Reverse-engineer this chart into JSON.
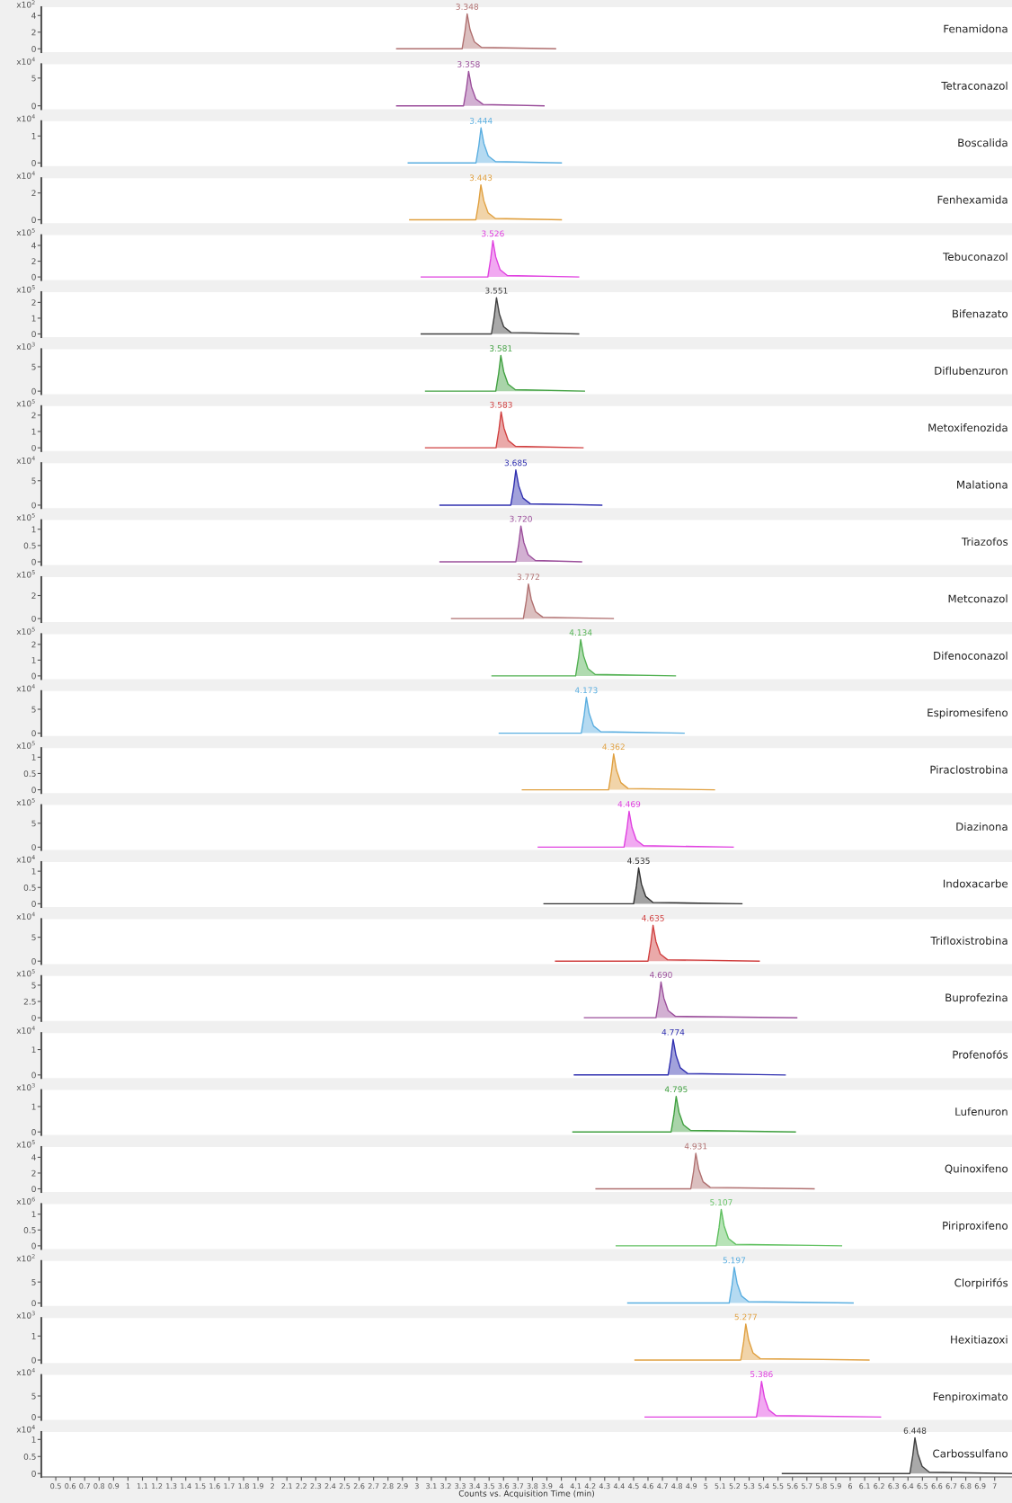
{
  "chart_data": [
    {
      "type": "area",
      "ylabel": "x10$^{2}$",
      "xlim": [
        0.4,
        7.12
      ],
      "ylim": [
        -0.4,
        5
      ],
      "yticks": [
        0,
        2,
        4
      ],
      "tick_labels": "y",
      "x": [
        2.86,
        3.313,
        3.333,
        3.348,
        3.368,
        3.398,
        3.448,
        3.96
      ],
      "series": [
        {
          "color": "#b07070",
          "values": [
            0,
            0,
            2.1,
            4.2,
            2.3,
            0.84,
            0.17,
            0
          ]
        }
      ],
      "annotations": [
        {
          "text": "3.348",
          "x": 3.348,
          "y": 4.2
        },
        "Fenamidona"
      ]
    },
    {
      "type": "area",
      "ylabel": "x10$^{4}$",
      "xlim": [
        0.4,
        7.12
      ],
      "ylim": [
        -0.6,
        7.5
      ],
      "yticks": [
        0,
        5
      ],
      "tick_labels": "y",
      "x": [
        2.86,
        3.323,
        3.343,
        3.358,
        3.378,
        3.408,
        3.458,
        3.88
      ],
      "series": [
        {
          "color": "#9b4f9b",
          "values": [
            0,
            0,
            3.1,
            6.2,
            3.4,
            1.24,
            0.25,
            0
          ]
        }
      ],
      "annotations": [
        {
          "text": "3.358",
          "x": 3.358,
          "y": 6.2
        },
        "Tetraconazol"
      ]
    },
    {
      "type": "area",
      "ylabel": "x10$^{4}$",
      "xlim": [
        0.4,
        7.12
      ],
      "ylim": [
        -0.12,
        1.55
      ],
      "yticks": [
        0,
        1
      ],
      "tick_labels": "y",
      "x": [
        2.94,
        3.409,
        3.429,
        3.444,
        3.464,
        3.494,
        3.544,
        4.0
      ],
      "series": [
        {
          "color": "#5aaee0",
          "values": [
            0,
            0,
            0.65,
            1.3,
            0.72,
            0.26,
            0.05,
            0
          ]
        }
      ],
      "annotations": [
        {
          "text": "3.444",
          "x": 3.444,
          "y": 1.3
        },
        "Boscalida"
      ]
    },
    {
      "type": "area",
      "ylabel": "x10$^{4}$",
      "xlim": [
        0.4,
        7.12
      ],
      "ylim": [
        -0.25,
        3.1
      ],
      "yticks": [
        0,
        2
      ],
      "tick_labels": "y",
      "x": [
        2.95,
        3.408,
        3.428,
        3.443,
        3.463,
        3.493,
        3.543,
        4.0
      ],
      "series": [
        {
          "color": "#e0a040",
          "values": [
            0,
            0,
            1.3,
            2.6,
            1.43,
            0.52,
            0.1,
            0
          ]
        }
      ],
      "annotations": [
        {
          "text": "3.443",
          "x": 3.443,
          "y": 2.6
        },
        "Fenhexamida"
      ]
    },
    {
      "type": "area",
      "ylabel": "x10$^{5}$",
      "xlim": [
        0.4,
        7.12
      ],
      "ylim": [
        -0.4,
        5.3
      ],
      "yticks": [
        0,
        2,
        4
      ],
      "tick_labels": "y",
      "x": [
        3.03,
        3.491,
        3.511,
        3.526,
        3.546,
        3.576,
        3.626,
        4.12
      ],
      "series": [
        {
          "color": "#e040e0",
          "values": [
            0,
            0,
            2.3,
            4.6,
            2.53,
            0.92,
            0.18,
            0
          ]
        }
      ],
      "annotations": [
        {
          "text": "3.526",
          "x": 3.526,
          "y": 4.6
        },
        "Tebuconazol"
      ]
    },
    {
      "type": "area",
      "ylabel": "x10$^{5}$",
      "xlim": [
        0.4,
        7.12
      ],
      "ylim": [
        -0.2,
        2.65
      ],
      "yticks": [
        0,
        1,
        2
      ],
      "tick_labels": "y",
      "x": [
        3.03,
        3.516,
        3.536,
        3.551,
        3.571,
        3.601,
        3.651,
        4.12
      ],
      "series": [
        {
          "color": "#404040",
          "values": [
            0,
            0,
            1.15,
            2.3,
            1.27,
            0.46,
            0.09,
            0
          ]
        }
      ],
      "annotations": [
        {
          "text": "3.551",
          "x": 3.551,
          "y": 2.3
        },
        "Bifenazato"
      ]
    },
    {
      "type": "area",
      "ylabel": "x10$^{3}$",
      "xlim": [
        0.4,
        7.12
      ],
      "ylim": [
        -0.6,
        8.6
      ],
      "yticks": [
        0,
        5
      ],
      "tick_labels": "y",
      "x": [
        3.06,
        3.546,
        3.566,
        3.581,
        3.601,
        3.631,
        3.681,
        4.16
      ],
      "series": [
        {
          "color": "#40a040",
          "values": [
            0,
            0,
            3.65,
            7.3,
            4.0,
            1.46,
            0.29,
            0
          ]
        }
      ],
      "annotations": [
        {
          "text": "3.581",
          "x": 3.581,
          "y": 7.3
        },
        "Diflubenzuron"
      ]
    },
    {
      "type": "area",
      "ylabel": "x10$^{5}$",
      "xlim": [
        0.4,
        7.12
      ],
      "ylim": [
        -0.2,
        2.55
      ],
      "yticks": [
        0,
        1,
        2
      ],
      "tick_labels": "y",
      "x": [
        3.06,
        3.548,
        3.568,
        3.583,
        3.603,
        3.633,
        3.683,
        4.15
      ],
      "series": [
        {
          "color": "#d04040",
          "values": [
            0,
            0,
            1.1,
            2.2,
            1.21,
            0.44,
            0.09,
            0
          ]
        }
      ],
      "annotations": [
        {
          "text": "3.583",
          "x": 3.583,
          "y": 2.2
        },
        "Metoxifenozida"
      ]
    },
    {
      "type": "area",
      "ylabel": "x10$^{4}$",
      "xlim": [
        0.4,
        7.12
      ],
      "ylim": [
        -0.6,
        8.6
      ],
      "yticks": [
        0,
        5
      ],
      "tick_labels": "y",
      "x": [
        3.16,
        3.65,
        3.67,
        3.685,
        3.705,
        3.735,
        3.785,
        4.28
      ],
      "series": [
        {
          "color": "#3030b0",
          "values": [
            0,
            0,
            3.6,
            7.2,
            3.96,
            1.44,
            0.29,
            0
          ]
        }
      ],
      "annotations": [
        {
          "text": "3.685",
          "x": 3.685,
          "y": 7.2
        },
        "Malationa"
      ]
    },
    {
      "type": "area",
      "ylabel": "x10$^{5}$",
      "xlim": [
        0.4,
        7.12
      ],
      "ylim": [
        -0.1,
        1.28
      ],
      "yticks": [
        0,
        0.5,
        1
      ],
      "tick_labels": "y",
      "x": [
        3.16,
        3.685,
        3.705,
        3.72,
        3.74,
        3.77,
        3.82,
        4.14
      ],
      "series": [
        {
          "color": "#9b4f9b",
          "values": [
            0,
            0,
            0.55,
            1.1,
            0.6,
            0.22,
            0.04,
            0
          ]
        }
      ],
      "annotations": [
        {
          "text": "3.720",
          "x": 3.72,
          "y": 1.1
        },
        "Triazofos"
      ]
    },
    {
      "type": "area",
      "ylabel": "x10$^{5}$",
      "xlim": [
        0.4,
        7.12
      ],
      "ylim": [
        -0.3,
        3.6
      ],
      "yticks": [
        0,
        2
      ],
      "tick_labels": "y",
      "x": [
        3.24,
        3.737,
        3.757,
        3.772,
        3.792,
        3.822,
        3.872,
        4.36
      ],
      "series": [
        {
          "color": "#b07070",
          "values": [
            0,
            0,
            1.5,
            3.0,
            1.65,
            0.6,
            0.12,
            0
          ]
        }
      ],
      "annotations": [
        {
          "text": "3.772",
          "x": 3.772,
          "y": 3.0
        },
        "Metconazol"
      ]
    },
    {
      "type": "area",
      "ylabel": "x10$^{5}$",
      "xlim": [
        0.4,
        7.12
      ],
      "ylim": [
        -0.2,
        2.65
      ],
      "yticks": [
        0,
        1,
        2
      ],
      "tick_labels": "y",
      "x": [
        3.52,
        4.099,
        4.119,
        4.134,
        4.154,
        4.184,
        4.234,
        4.79
      ],
      "series": [
        {
          "color": "#50b050",
          "values": [
            0,
            0,
            1.15,
            2.3,
            1.27,
            0.46,
            0.09,
            0
          ]
        }
      ],
      "annotations": [
        {
          "text": "4.134",
          "x": 4.134,
          "y": 2.3
        },
        "Difenoconazol"
      ]
    },
    {
      "type": "area",
      "ylabel": "x10$^{4}$",
      "xlim": [
        0.4,
        7.12
      ],
      "ylim": [
        -0.6,
        8.8
      ],
      "yticks": [
        0,
        5
      ],
      "tick_labels": "y",
      "x": [
        3.57,
        4.138,
        4.158,
        4.173,
        4.193,
        4.223,
        4.273,
        4.85
      ],
      "series": [
        {
          "color": "#5aaee0",
          "values": [
            0,
            0,
            3.75,
            7.5,
            4.1,
            1.5,
            0.3,
            0
          ]
        }
      ],
      "annotations": [
        {
          "text": "4.173",
          "x": 4.173,
          "y": 7.5
        },
        "Espiromesifeno"
      ]
    },
    {
      "type": "area",
      "ylabel": "x10$^{5}$",
      "xlim": [
        0.4,
        7.12
      ],
      "ylim": [
        -0.1,
        1.28
      ],
      "yticks": [
        0,
        0.5,
        1
      ],
      "tick_labels": "y",
      "x": [
        3.73,
        4.327,
        4.347,
        4.362,
        4.382,
        4.412,
        4.462,
        5.06
      ],
      "series": [
        {
          "color": "#e0a040",
          "values": [
            0,
            0,
            0.55,
            1.1,
            0.6,
            0.22,
            0.04,
            0
          ]
        }
      ],
      "annotations": [
        {
          "text": "4.362",
          "x": 4.362,
          "y": 1.1
        },
        "Piraclostrobina"
      ]
    },
    {
      "type": "area",
      "ylabel": "x10$^{5}$",
      "xlim": [
        0.4,
        7.12
      ],
      "ylim": [
        -0.6,
        8.8
      ],
      "yticks": [
        0,
        5
      ],
      "tick_labels": "y",
      "x": [
        3.84,
        4.434,
        4.454,
        4.469,
        4.489,
        4.519,
        4.569,
        5.19
      ],
      "series": [
        {
          "color": "#e040e0",
          "values": [
            0,
            0,
            3.75,
            7.5,
            4.1,
            1.5,
            0.3,
            0
          ]
        }
      ],
      "annotations": [
        {
          "text": "4.469",
          "x": 4.469,
          "y": 7.5
        },
        "Diazinona"
      ]
    },
    {
      "type": "area",
      "ylabel": "x10$^{4}$",
      "xlim": [
        0.4,
        7.12
      ],
      "ylim": [
        -0.1,
        1.28
      ],
      "yticks": [
        0,
        0.5,
        1
      ],
      "tick_labels": "y",
      "x": [
        3.88,
        4.5,
        4.52,
        4.535,
        4.555,
        4.585,
        4.635,
        5.25
      ],
      "series": [
        {
          "color": "#303030",
          "values": [
            0,
            0,
            0.55,
            1.1,
            0.6,
            0.22,
            0.04,
            0
          ]
        }
      ],
      "annotations": [
        {
          "text": "4.535",
          "x": 4.535,
          "y": 1.1
        },
        "Indoxacarbe"
      ]
    },
    {
      "type": "area",
      "ylabel": "x10$^{4}$",
      "xlim": [
        0.4,
        7.12
      ],
      "ylim": [
        -0.6,
        8.8
      ],
      "yticks": [
        0,
        5
      ],
      "tick_labels": "y",
      "x": [
        3.96,
        4.6,
        4.62,
        4.635,
        4.655,
        4.685,
        4.735,
        5.37
      ],
      "series": [
        {
          "color": "#d04040",
          "values": [
            0,
            0,
            3.75,
            7.5,
            4.1,
            1.5,
            0.3,
            0
          ]
        }
      ],
      "annotations": [
        {
          "text": "4.635",
          "x": 4.635,
          "y": 7.5
        },
        "Trifloxistrobina"
      ]
    },
    {
      "type": "area",
      "ylabel": "x10$^{5}$",
      "xlim": [
        0.4,
        7.12
      ],
      "ylim": [
        -0.5,
        6.4
      ],
      "yticks": [
        0,
        2.5,
        5
      ],
      "tick_labels": "y",
      "x": [
        4.16,
        4.655,
        4.675,
        4.69,
        4.71,
        4.74,
        4.79,
        5.63
      ],
      "series": [
        {
          "color": "#9b4f9b",
          "values": [
            0,
            0,
            2.75,
            5.5,
            3.0,
            1.1,
            0.22,
            0
          ]
        }
      ],
      "annotations": [
        {
          "text": "4.690",
          "x": 4.69,
          "y": 5.5
        },
        "Buprofezina"
      ]
    },
    {
      "type": "area",
      "ylabel": "x10$^{4}$",
      "xlim": [
        0.4,
        7.12
      ],
      "ylim": [
        -0.12,
        1.65
      ],
      "yticks": [
        0,
        1
      ],
      "tick_labels": "y",
      "x": [
        4.09,
        4.739,
        4.759,
        4.774,
        4.794,
        4.824,
        4.874,
        5.55
      ],
      "series": [
        {
          "color": "#3030b0",
          "values": [
            0,
            0,
            0.7,
            1.4,
            0.77,
            0.28,
            0.06,
            0
          ]
        }
      ],
      "annotations": [
        {
          "text": "4.774",
          "x": 4.774,
          "y": 1.4
        },
        "Profenofós"
      ]
    },
    {
      "type": "area",
      "ylabel": "x10$^{3}$",
      "xlim": [
        0.4,
        7.12
      ],
      "ylim": [
        -0.12,
        1.65
      ],
      "yticks": [
        0,
        1
      ],
      "tick_labels": "y",
      "x": [
        4.08,
        4.76,
        4.78,
        4.795,
        4.815,
        4.845,
        4.895,
        5.62
      ],
      "series": [
        {
          "color": "#40a040",
          "values": [
            0,
            0,
            0.7,
            1.4,
            0.77,
            0.28,
            0.06,
            0
          ]
        }
      ],
      "annotations": [
        {
          "text": "4.795",
          "x": 4.795,
          "y": 1.4
        },
        "Lufenuron"
      ]
    },
    {
      "type": "area",
      "ylabel": "x10$^{5}$",
      "xlim": [
        0.4,
        7.12
      ],
      "ylim": [
        -0.4,
        5.3
      ],
      "yticks": [
        0,
        2,
        4
      ],
      "tick_labels": "y",
      "x": [
        4.24,
        4.896,
        4.916,
        4.931,
        4.951,
        4.981,
        5.031,
        5.75
      ],
      "series": [
        {
          "color": "#b07070",
          "values": [
            0,
            0,
            2.25,
            4.5,
            2.48,
            0.9,
            0.18,
            0
          ]
        }
      ],
      "annotations": [
        {
          "text": "4.931",
          "x": 4.931,
          "y": 4.5
        },
        "Quinoxifeno"
      ]
    },
    {
      "type": "area",
      "ylabel": "x10$^{6}$",
      "xlim": [
        0.4,
        7.12
      ],
      "ylim": [
        -0.1,
        1.32
      ],
      "yticks": [
        0,
        0.5,
        1
      ],
      "tick_labels": "y",
      "x": [
        4.38,
        5.072,
        5.092,
        5.107,
        5.127,
        5.157,
        5.207,
        5.94
      ],
      "series": [
        {
          "color": "#60c060",
          "values": [
            0,
            0,
            0.58,
            1.15,
            0.63,
            0.23,
            0.05,
            0
          ]
        }
      ],
      "annotations": [
        {
          "text": "5.107",
          "x": 5.107,
          "y": 1.15
        },
        "Piriproxifeno"
      ]
    },
    {
      "type": "area",
      "ylabel": "x10$^{2}$",
      "xlim": [
        0.4,
        7.12
      ],
      "ylim": [
        -0.7,
        10
      ],
      "yticks": [
        0,
        5
      ],
      "tick_labels": "y",
      "x": [
        4.46,
        5.162,
        5.182,
        5.197,
        5.217,
        5.247,
        5.297,
        6.02
      ],
      "series": [
        {
          "color": "#5aaee0",
          "values": [
            0,
            0,
            4.25,
            8.5,
            4.68,
            1.7,
            0.34,
            0
          ]
        }
      ],
      "annotations": [
        {
          "text": "5.197",
          "x": 5.197,
          "y": 8.5
        },
        "Clorpirifós"
      ]
    },
    {
      "type": "area",
      "ylabel": "x10$^{3}$",
      "xlim": [
        0.4,
        7.12
      ],
      "ylim": [
        -0.12,
        1.75
      ],
      "yticks": [
        0,
        1
      ],
      "tick_labels": "y",
      "x": [
        4.51,
        5.242,
        5.262,
        5.277,
        5.297,
        5.327,
        5.377,
        6.13
      ],
      "series": [
        {
          "color": "#e0a040",
          "values": [
            0,
            0,
            0.75,
            1.5,
            0.83,
            0.3,
            0.06,
            0
          ]
        }
      ],
      "annotations": [
        {
          "text": "5.277",
          "x": 5.277,
          "y": 1.5
        },
        "Hexitiazoxi"
      ]
    },
    {
      "type": "area",
      "ylabel": "x10$^{4}$",
      "xlim": [
        0.4,
        7.12
      ],
      "ylim": [
        -0.7,
        10
      ],
      "yticks": [
        0,
        5
      ],
      "tick_labels": "y",
      "x": [
        4.58,
        5.351,
        5.371,
        5.386,
        5.406,
        5.436,
        5.486,
        6.21
      ],
      "series": [
        {
          "color": "#e040e0",
          "values": [
            0,
            0,
            4.25,
            8.5,
            4.68,
            1.7,
            0.34,
            0
          ]
        }
      ],
      "annotations": [
        {
          "text": "5.386",
          "x": 5.386,
          "y": 8.5
        },
        "Fenpiroximato"
      ]
    },
    {
      "type": "area",
      "ylabel": "x10$^{4}$",
      "xlabel": "Counts vs. Acquisition Time (min)",
      "xlim": [
        0.4,
        7.12
      ],
      "xticks": [
        0.5,
        0.6,
        0.7,
        0.8,
        0.9,
        1,
        1.1,
        1.2,
        1.3,
        1.4,
        1.5,
        1.6,
        1.7,
        1.8,
        1.9,
        2,
        2.1,
        2.2,
        2.3,
        2.4,
        2.5,
        2.6,
        2.7,
        2.8,
        2.9,
        3,
        3.1,
        3.2,
        3.3,
        3.4,
        3.5,
        3.6,
        3.7,
        3.8,
        3.9,
        4,
        4.1,
        4.2,
        4.3,
        4.4,
        4.5,
        4.6,
        4.7,
        4.8,
        4.9,
        5,
        5.1,
        5.2,
        5.3,
        5.4,
        5.5,
        5.6,
        5.7,
        5.8,
        5.9,
        6,
        6.1,
        6.2,
        6.3,
        6.4,
        6.5,
        6.6,
        6.7,
        6.8,
        6.9,
        7
      ],
      "ylim": [
        -0.1,
        1.22
      ],
      "yticks": [
        0,
        0.5,
        1
      ],
      "x": [
        5.53,
        6.413,
        6.433,
        6.448,
        6.468,
        6.498,
        6.548,
        7.12
      ],
      "series": [
        {
          "color": "#404040",
          "values": [
            0,
            0,
            0.53,
            1.05,
            0.58,
            0.21,
            0.04,
            0
          ]
        }
      ],
      "annotations": [
        {
          "text": "6.448",
          "x": 6.448,
          "y": 1.05
        },
        "Carbossulfano"
      ]
    }
  ]
}
